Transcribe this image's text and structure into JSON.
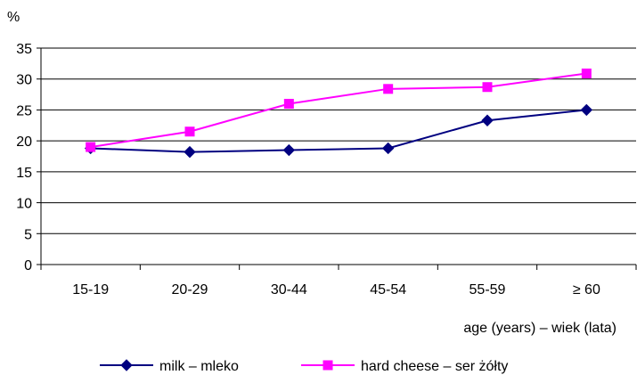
{
  "chart_data": {
    "type": "line",
    "ylabel": "%",
    "xlabel": "age (years) – wiek (lata)",
    "categories": [
      "15-19",
      "20-29",
      "30-44",
      "45-54",
      "55-59",
      "≥ 60"
    ],
    "ylim": [
      0,
      35
    ],
    "yticks": [
      "0",
      "5",
      "10",
      "15",
      "20",
      "25",
      "30",
      "35"
    ],
    "grid": "horizontal",
    "legend_position": "bottom",
    "series": [
      {
        "name": "milk – mleko",
        "values": [
          18.8,
          18.2,
          18.5,
          18.8,
          23.3,
          25.0
        ],
        "color": "#000080",
        "marker": "diamond"
      },
      {
        "name": "hard cheese – ser żółty",
        "values": [
          19.0,
          21.5,
          26.0,
          28.4,
          28.7,
          30.9
        ],
        "color": "#FF00FF",
        "marker": "square"
      }
    ]
  }
}
